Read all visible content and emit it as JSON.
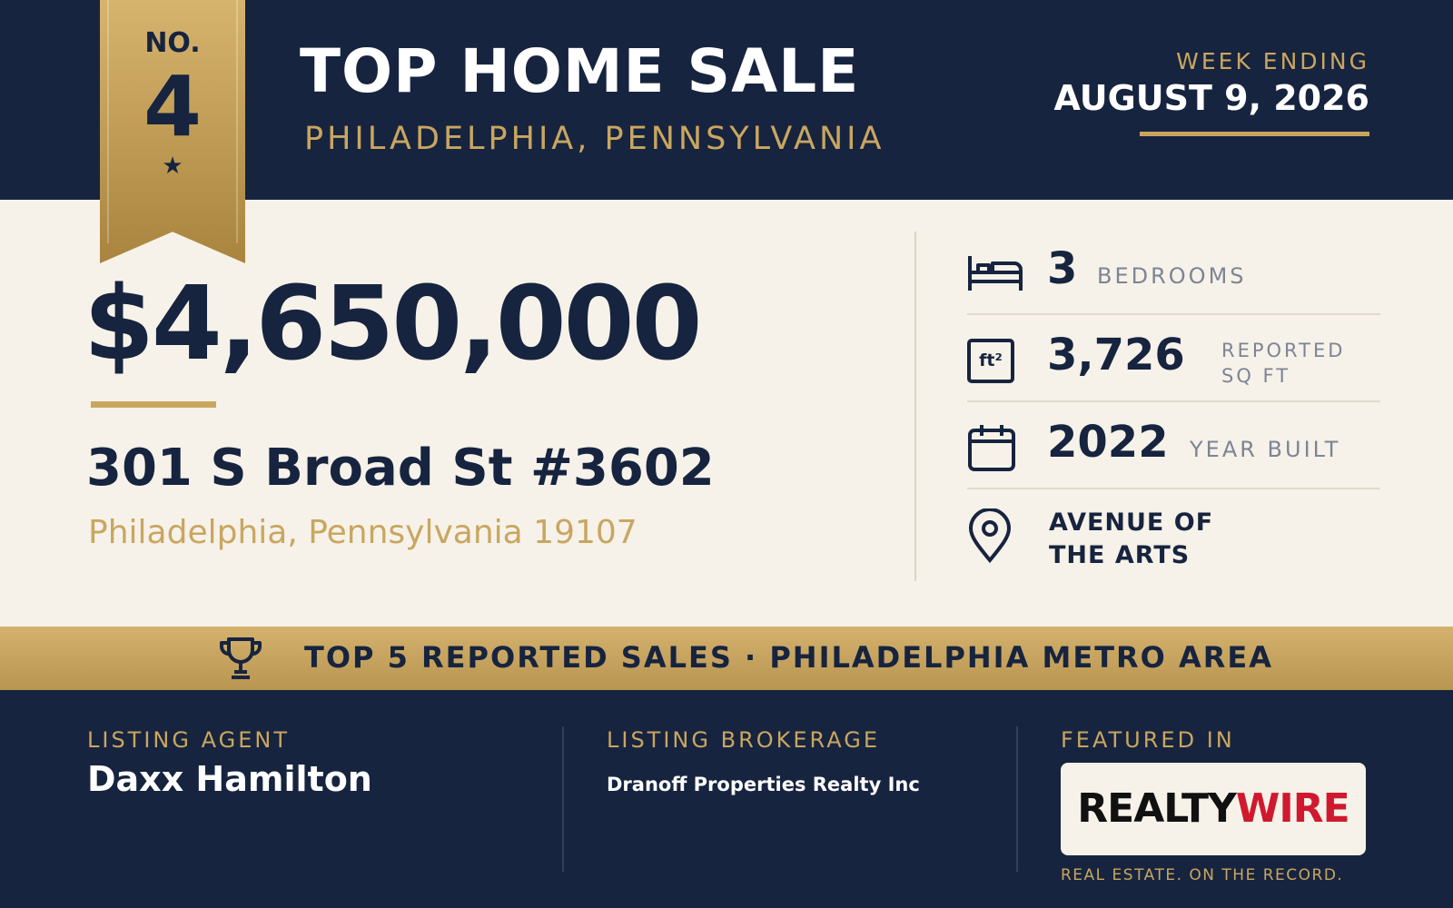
{
  "ribbon": {
    "label": "NO.",
    "rank": "4"
  },
  "header": {
    "title": "TOP HOME SALE",
    "location": "PHILADELPHIA, PENNSYLVANIA",
    "week_label": "WEEK ENDING",
    "week_date": "AUGUST 9, 2026"
  },
  "price": "$4,650,000",
  "address": {
    "street": "301 S Broad St #3602",
    "city": "Philadelphia, Pennsylvania 19107"
  },
  "stats": [
    {
      "value": "3",
      "label": "BEDROOMS"
    },
    {
      "icon_text": "ft²",
      "value": "3,726",
      "label": "REPORTED SQ FT"
    },
    {
      "value": "2022",
      "label": "YEAR BUILT"
    },
    {
      "label": "AVENUE OF THE ARTS"
    }
  ],
  "banner": "TOP 5 REPORTED SALES · PHILADELPHIA METRO AREA",
  "footer": {
    "agent_label": "LISTING AGENT",
    "agent": "Daxx Hamilton",
    "brokerage_label": "LISTING BROKERAGE",
    "brokerage": "Dranoff Properties Realty Inc",
    "featured_label": "FEATURED IN",
    "logo_first": "REALTY",
    "logo_second": "WIRE",
    "tagline": "REAL ESTATE. ON THE RECORD."
  }
}
